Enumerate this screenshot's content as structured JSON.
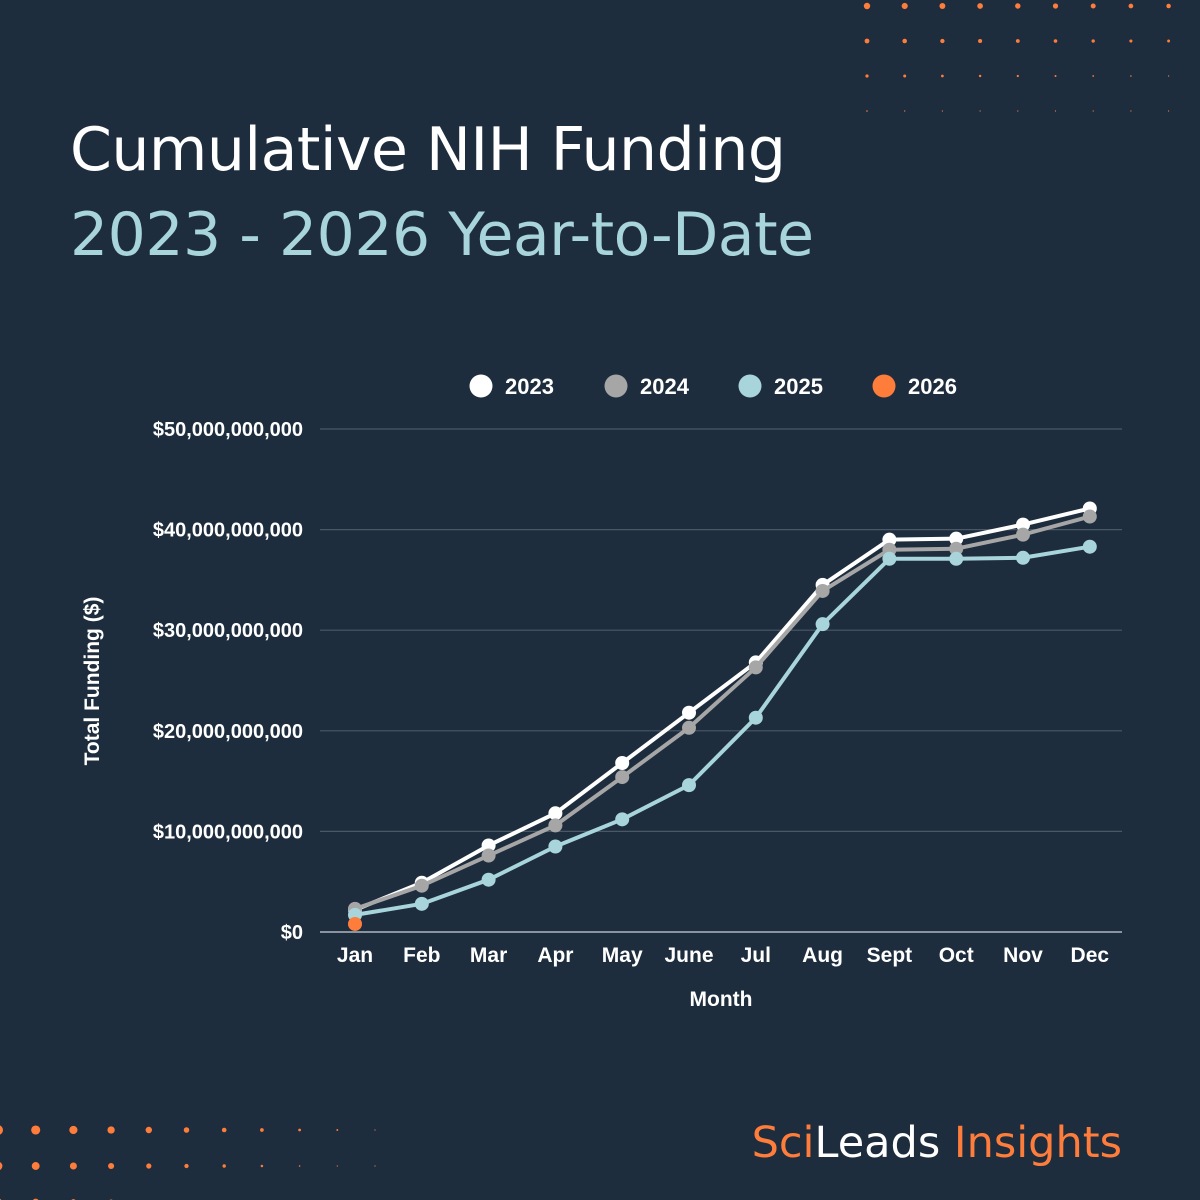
{
  "header": {
    "title": "Cumulative NIH Funding",
    "subtitle": "2023 - 2026 Year-to-Date"
  },
  "branding": {
    "part1": "Sci",
    "part2": "Leads",
    "part3": " Insights"
  },
  "colors": {
    "background": "#1e2d3d",
    "accent": "#ff7d3b",
    "series_2023": "#ffffff",
    "series_2024": "#a6a6a6",
    "series_2025": "#a8d4db",
    "series_2026": "#ff7d3b",
    "gridline": "#4a5866"
  },
  "chart_data": {
    "type": "line",
    "title": "Cumulative NIH Funding",
    "subtitle": "2023 - 2026 Year-to-Date",
    "xlabel": "Month",
    "ylabel": "Total Funding ($)",
    "categories": [
      "Jan",
      "Feb",
      "Mar",
      "Apr",
      "May",
      "June",
      "Jul",
      "Aug",
      "Sept",
      "Oct",
      "Nov",
      "Dec"
    ],
    "ylim": [
      0,
      50000000000
    ],
    "yticks": [
      0,
      10000000000,
      20000000000,
      30000000000,
      40000000000,
      50000000000
    ],
    "ytick_labels": [
      "$0",
      "$10,000,000,000",
      "$20,000,000,000",
      "$30,000,000,000",
      "$40,000,000,000",
      "$50,000,000,000"
    ],
    "grid": true,
    "legend_position": "top",
    "series": [
      {
        "name": "2023",
        "color": "#ffffff",
        "values": [
          2200000000,
          4900000000,
          8600000000,
          11800000000,
          16800000000,
          21800000000,
          26800000000,
          34500000000,
          39000000000,
          39100000000,
          40500000000,
          42100000000
        ]
      },
      {
        "name": "2024",
        "color": "#a6a6a6",
        "values": [
          2300000000,
          4600000000,
          7600000000,
          10600000000,
          15400000000,
          20300000000,
          26300000000,
          33900000000,
          38000000000,
          38100000000,
          39500000000,
          41300000000
        ]
      },
      {
        "name": "2025",
        "color": "#a8d4db",
        "values": [
          1700000000,
          2800000000,
          5200000000,
          8500000000,
          11200000000,
          14600000000,
          21300000000,
          30600000000,
          37100000000,
          37100000000,
          37200000000,
          38300000000
        ]
      },
      {
        "name": "2026",
        "color": "#ff7d3b",
        "values": [
          800000000
        ]
      }
    ]
  }
}
